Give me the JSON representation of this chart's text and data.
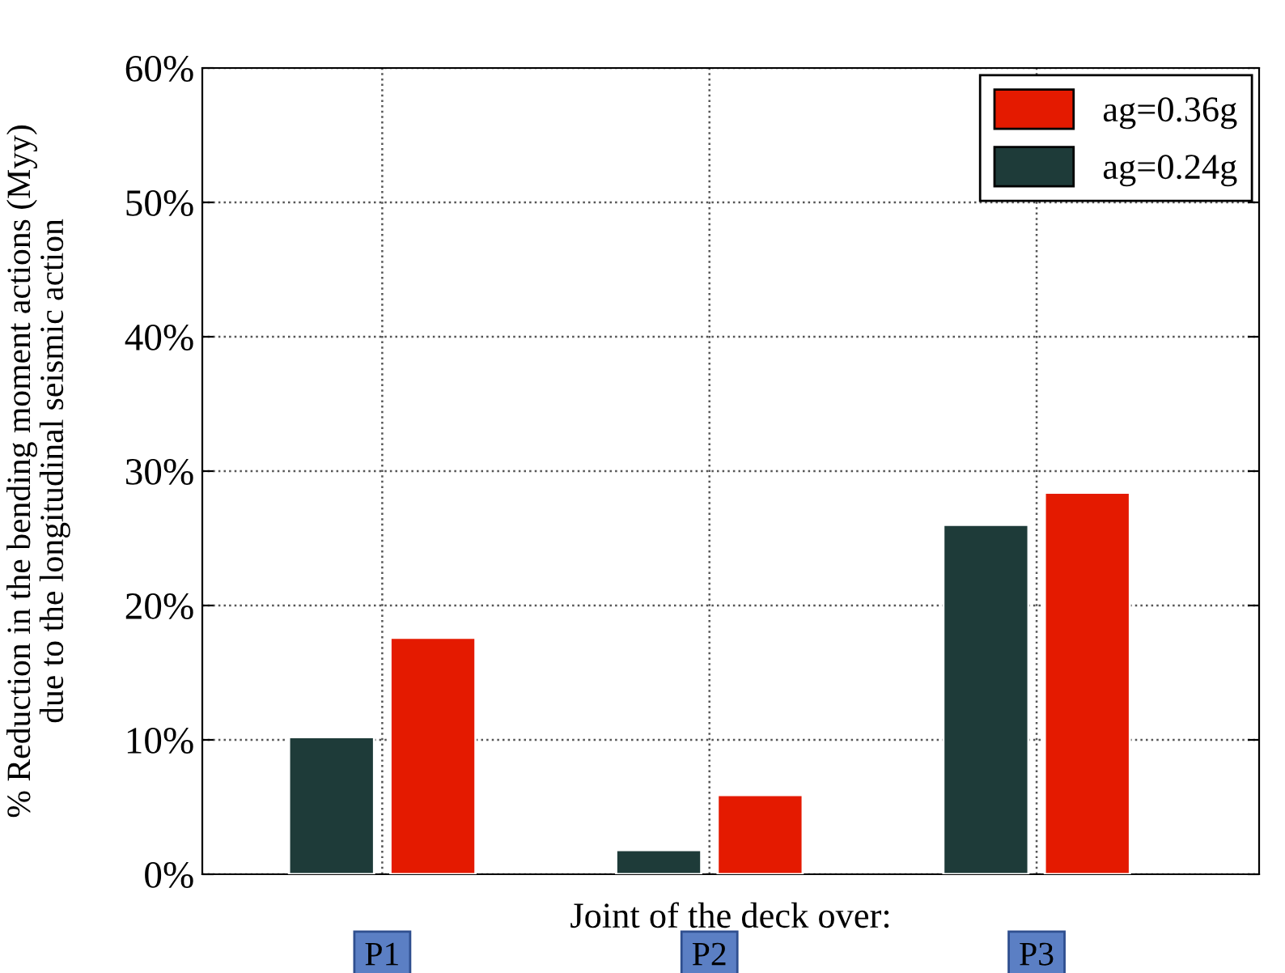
{
  "chart_data": {
    "type": "bar",
    "xlabel": "Joint of the deck over:",
    "ylabel": "% Reduction in the bending moment actions (Myy)\ndue to the longitudinal seismic action",
    "categories": [
      "P1",
      "P2",
      "P3"
    ],
    "series": [
      {
        "name": "ag=0.24g",
        "color": "#1e3b39",
        "values": [
          10.2,
          1.8,
          26.0
        ]
      },
      {
        "name": "ag=0.36g",
        "color": "#e41a00",
        "values": [
          17.6,
          5.9,
          28.4
        ]
      }
    ],
    "ylim": [
      0,
      60
    ],
    "yticks": [
      {
        "value": 0,
        "label": "0%"
      },
      {
        "value": 10,
        "label": "10%"
      },
      {
        "value": 20,
        "label": "20%"
      },
      {
        "value": 30,
        "label": "30%"
      },
      {
        "value": 40,
        "label": "40%"
      },
      {
        "value": 50,
        "label": "50%"
      },
      {
        "value": 60,
        "label": "60%"
      }
    ],
    "grid": true,
    "legend": "top right"
  }
}
